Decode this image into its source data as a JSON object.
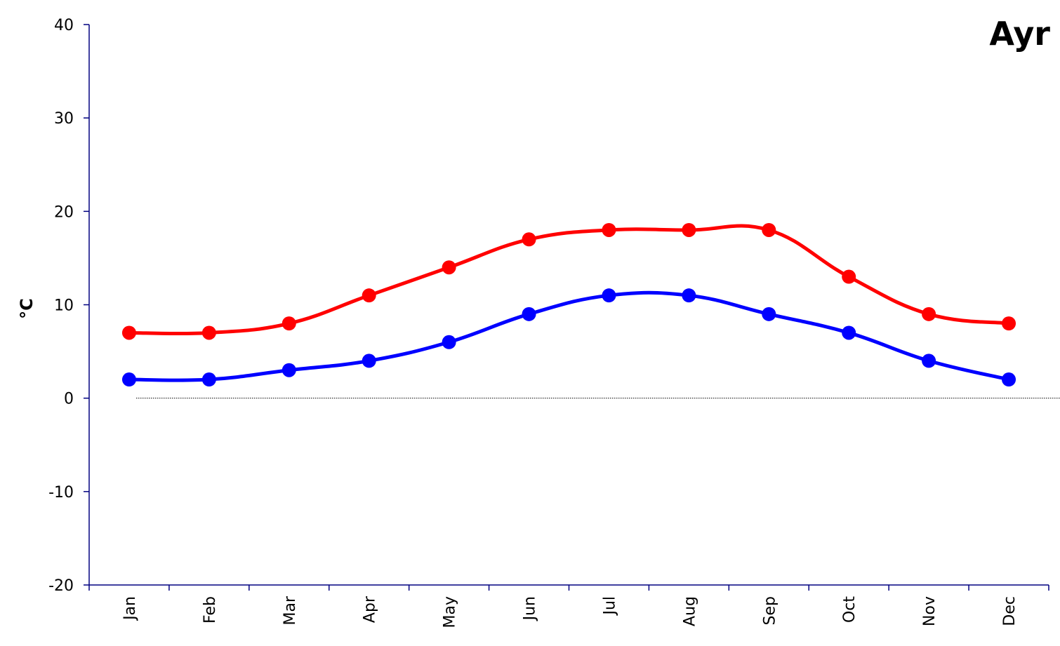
{
  "chart_data": {
    "type": "line",
    "title": "Ayr",
    "xlabel": "",
    "ylabel": "°C",
    "ylim": [
      -20,
      40
    ],
    "yticks": [
      -20,
      -10,
      0,
      10,
      20,
      30,
      40
    ],
    "categories": [
      "Jan",
      "Feb",
      "Mar",
      "Apr",
      "May",
      "Jun",
      "Jul",
      "Aug",
      "Sep",
      "Oct",
      "Nov",
      "Dec"
    ],
    "grid": false,
    "legend": "none",
    "reference_line": 0,
    "series": [
      {
        "color": "#ff0000",
        "values": [
          7,
          7,
          8,
          11,
          14,
          17,
          18,
          18,
          18,
          13,
          9,
          8
        ]
      },
      {
        "color": "#0000ff",
        "values": [
          2,
          2,
          3,
          4,
          6,
          9,
          11,
          11,
          9,
          7,
          4,
          2
        ]
      }
    ]
  }
}
